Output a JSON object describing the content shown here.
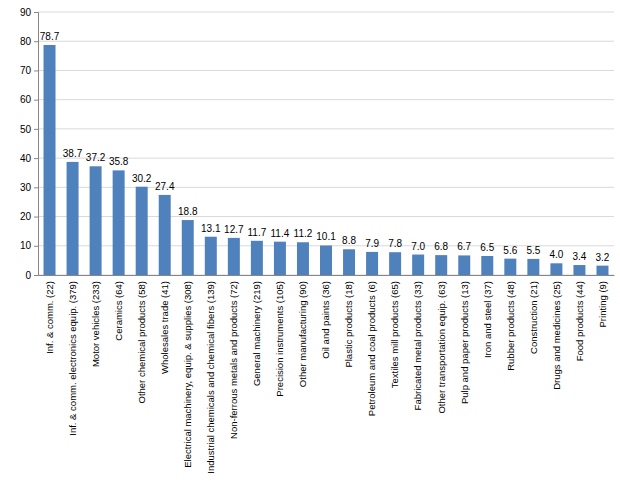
{
  "chart_data": {
    "type": "bar",
    "categories": [
      "Inf. & comm. (22)",
      "Inf. & comm. electronics equip. (379)",
      "Motor vehicles (233)",
      "Ceramics (64)",
      "Other chemical products (58)",
      "Wholesales trade (41)",
      "Electrical machinery, equip. & supplies (308)",
      "Industrial chemicals and chemical fibers (139)",
      "Non-ferrous metals and products (72)",
      "General machinery (219)",
      "Precision instruments (105)",
      "Other manufacturing (90)",
      "Oil and paints (36)",
      "Plastic products (18)",
      "Petroleum and coal products (6)",
      "Textiles mill products (65)",
      "Fabricated metal products (33)",
      "Other transportation equip. (63)",
      "Pulp and paper products (13)",
      "Iron and steel (37)",
      "Rubber products (48)",
      "Construction (21)",
      "Drugs and medicines (25)",
      "Food products (44)",
      "Printing (9)"
    ],
    "values": [
      78.7,
      38.7,
      37.2,
      35.8,
      30.2,
      27.4,
      18.8,
      13.1,
      12.7,
      11.7,
      11.4,
      11.2,
      10.1,
      8.8,
      7.9,
      7.8,
      7.0,
      6.8,
      6.7,
      6.5,
      5.6,
      5.5,
      4.0,
      3.4,
      3.2
    ],
    "value_labels": [
      "78.7",
      "38.7",
      "37.2",
      "35.8",
      "30.2",
      "27.4",
      "18.8",
      "13.1",
      "12.7",
      "11.7",
      "11.4",
      "11.2",
      "10.1",
      "8.8",
      "7.9",
      "7.8",
      "7.0",
      "6.8",
      "6.7",
      "6.5",
      "5.6",
      "5.5",
      "4.0",
      "3.4",
      "3.2"
    ],
    "color": "#4f81bd",
    "ylim": [
      0,
      90
    ],
    "yticks": [
      0,
      10,
      20,
      30,
      40,
      50,
      60,
      70,
      80,
      90
    ],
    "grid": true,
    "data_labels": true
  }
}
